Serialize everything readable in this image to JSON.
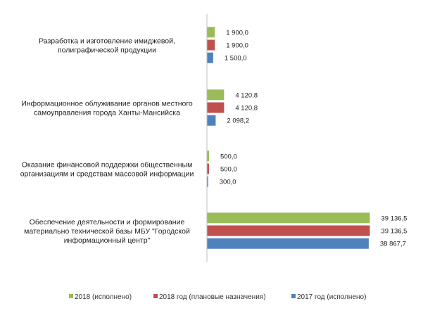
{
  "chart_data": {
    "type": "bar",
    "orientation": "horizontal",
    "categories": [
      [
        "Разработка и изготовление имиджевой,",
        "полиграфической продукции"
      ],
      [
        "Информационное облуживание органов  местного",
        "самоуправления города Ханты-Мансийска"
      ],
      [
        "Оказание финансовой поддержки общественным",
        "организациям и средствам массовой информации"
      ],
      [
        "Обеспечение деятельности и формирование",
        "материально технической базы МБУ \"Городской",
        "информационный центр\""
      ]
    ],
    "series": [
      {
        "name": "2018 (исполнено)",
        "color": "#9BBB59",
        "values": [
          1900.0,
          4120.8,
          500.0,
          39136.5
        ],
        "labels": [
          "1 900,0",
          "4 120,8",
          "500,0",
          "39 136,5"
        ]
      },
      {
        "name": "2018 год  (плановые назначения)",
        "color": "#C0504D",
        "values": [
          1900.0,
          4120.8,
          500.0,
          39136.5
        ],
        "labels": [
          "1 900,0",
          "4 120,8",
          "500,0",
          "39 136,5"
        ]
      },
      {
        "name": "2017 год  (исполнено)",
        "color": "#4F81BD",
        "values": [
          1500.0,
          2098.2,
          300.0,
          38867.7
        ],
        "labels": [
          "1 500,0",
          "2 098,2",
          "300,0",
          "38 867,7"
        ]
      }
    ],
    "title": "",
    "xlabel": "",
    "ylabel": "",
    "grid": false,
    "legend_position": "bottom"
  }
}
